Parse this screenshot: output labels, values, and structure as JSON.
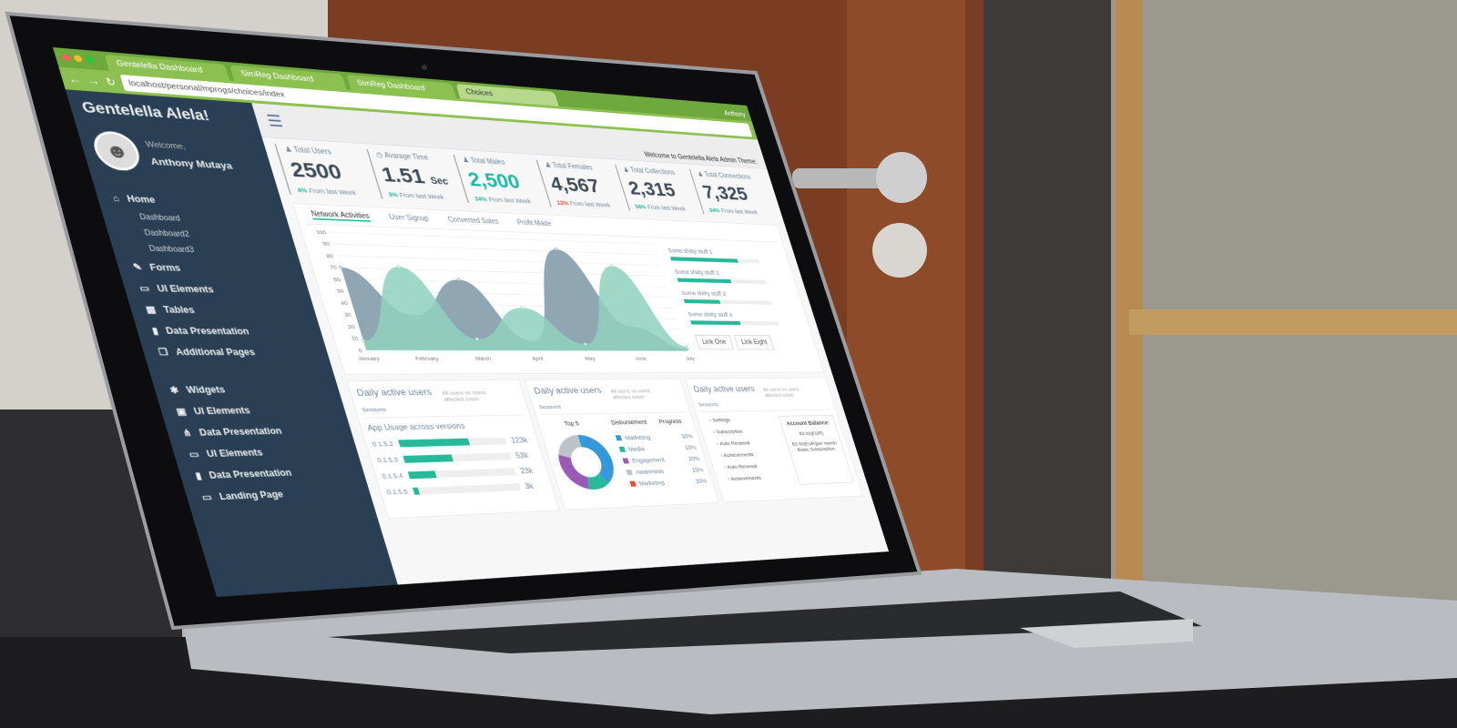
{
  "browser": {
    "tabs": [
      "Gentelella Dashboard",
      "SimReg Dashboard",
      "SimReg Dashboard",
      "Choices"
    ],
    "url": "localhost/personal/mprogs/choices/index",
    "user": "Anthony"
  },
  "sidebar": {
    "brand": "Gentelella Alela!",
    "welcome": "Welcome,",
    "user_name": "Anthony Mutaya",
    "items": [
      {
        "label": "Home",
        "icon": "home-icon",
        "sub": false
      },
      {
        "label": "Dashboard",
        "sub": true
      },
      {
        "label": "Dashboard2",
        "sub": true
      },
      {
        "label": "Dashboard3",
        "sub": true
      },
      {
        "label": "Forms",
        "icon": "edit-icon",
        "sub": false
      },
      {
        "label": "UI Elements",
        "icon": "desktop-icon",
        "sub": false
      },
      {
        "label": "Tables",
        "icon": "table-icon",
        "sub": false
      },
      {
        "label": "Data Presentation",
        "icon": "bar-chart-icon",
        "sub": false
      },
      {
        "label": "Additional Pages",
        "icon": "clone-icon",
        "sub": false
      },
      {
        "label": "Widgets",
        "icon": "bug-icon",
        "sub": false
      },
      {
        "label": "UI Elements",
        "icon": "windows-icon",
        "sub": false
      },
      {
        "label": "Data Presentation",
        "icon": "sitemap-icon",
        "sub": false
      },
      {
        "label": "UI Elements",
        "icon": "laptop-icon",
        "sub": false
      },
      {
        "label": "Data Presentation",
        "icon": "bar-chart-icon",
        "sub": false
      },
      {
        "label": "Landing Page",
        "icon": "laptop-icon",
        "sub": false
      }
    ]
  },
  "topnav": {
    "welcome": "Welcome to Gentelella Alela Admin Theme."
  },
  "stats": [
    {
      "label": "Total Users",
      "value": "2500",
      "unit": "",
      "change": "4%",
      "change_text": "From last Week",
      "highlight": false,
      "trend": "up"
    },
    {
      "label": "Avarage Time",
      "value": "1.51",
      "unit": "Sec",
      "change": "3%",
      "change_text": "From last Week",
      "highlight": false,
      "trend": "up"
    },
    {
      "label": "Total Males",
      "value": "2,500",
      "unit": "",
      "change": "34%",
      "change_text": "From last Week",
      "highlight": true,
      "trend": "up"
    },
    {
      "label": "Total Females",
      "value": "4,567",
      "unit": "",
      "change": "12%",
      "change_text": "From last Week",
      "highlight": false,
      "trend": "down"
    },
    {
      "label": "Total Collections",
      "value": "2,315",
      "unit": "",
      "change": "34%",
      "change_text": "From last Week",
      "highlight": false,
      "trend": "up"
    },
    {
      "label": "Total Connections",
      "value": "7,325",
      "unit": "",
      "change": "34%",
      "change_text": "From last Week",
      "highlight": false,
      "trend": "up"
    }
  ],
  "chart_tabs": [
    "Network Activities",
    "User Signup",
    "Converted Sales",
    "Profit Made"
  ],
  "chart_data": {
    "type": "area",
    "categories": [
      "January",
      "February",
      "March",
      "April",
      "May",
      "June",
      "July"
    ],
    "ylim": [
      0,
      100
    ],
    "yticks": [
      0,
      10,
      20,
      30,
      40,
      50,
      60,
      70,
      80,
      90,
      100
    ],
    "series": [
      {
        "values": [
          70,
          30,
          62,
          8,
          92,
          22,
          2
        ],
        "color": "#7e97a6"
      },
      {
        "values": [
          8,
          72,
          10,
          38,
          6,
          78,
          4
        ],
        "color": "#8fd1bd"
      }
    ]
  },
  "progress_legend": [
    {
      "label": "Some shitty stuff 1",
      "value": 0.75
    },
    {
      "label": "Some shitty stuff 2",
      "value": 0.6
    },
    {
      "label": "Some shitty stuff 3",
      "value": 0.4
    },
    {
      "label": "Some shitty stuff 4",
      "value": 0.55
    }
  ],
  "chart_buttons": [
    "Link One",
    "Link Eight"
  ],
  "panels": [
    {
      "title": "Daily active users",
      "subtitle": "All users vs users affected crash",
      "sessions": "Sessions"
    },
    {
      "title": "Daily active users",
      "subtitle": "All users vs users affected crash",
      "sessions": "Sessions"
    },
    {
      "title": "Daily active users",
      "subtitle": "All users vs users affected crash",
      "sessions": "Sessions"
    }
  ],
  "app_usage": {
    "title": "App Usage across versions",
    "rows": [
      {
        "version": "0.1.5.2",
        "value": "123k",
        "fraction": 0.65
      },
      {
        "version": "0.1.5.3",
        "value": "53k",
        "fraction": 0.45
      },
      {
        "version": "0.1.5.4",
        "value": "23k",
        "fraction": 0.25
      },
      {
        "version": "0.1.5.5",
        "value": "3k",
        "fraction": 0.05
      }
    ]
  },
  "top5": {
    "headers": [
      "Top 5",
      "Disbursement",
      "Progress"
    ],
    "rows": [
      {
        "label": "Marketing",
        "pct": "30%",
        "color": "#3498DB",
        "value": 30
      },
      {
        "label": "Media",
        "pct": "10%",
        "color": "#26B99A",
        "value": 10
      },
      {
        "label": "Engagement",
        "pct": "20%",
        "color": "#9B59B6",
        "value": 20
      },
      {
        "label": "Awareness",
        "pct": "15%",
        "color": "#BDC3C7",
        "value": 15
      },
      {
        "label": "Marketing",
        "pct": "30%",
        "color": "#E74C3C",
        "value": 30
      }
    ]
  },
  "settings": {
    "items": [
      "Settings",
      "Subscription",
      "Auto Renewal",
      "Achievements",
      "Auto Renewal",
      "Achievements"
    ],
    "account_title": "Account Balance:",
    "balance": "€0.00(EUR)",
    "plan": "€0.00(EUR)per month Basic Subscription"
  }
}
